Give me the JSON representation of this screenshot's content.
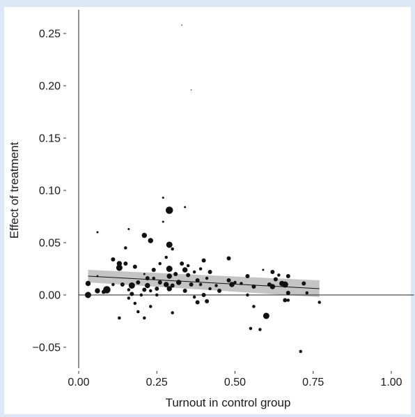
{
  "chart_data": {
    "type": "scatter",
    "title": "",
    "xlabel": "Turnout in control group",
    "ylabel": "Effect of treatment",
    "xlim": [
      -0.02,
      1.05
    ],
    "ylim": [
      -0.075,
      0.275
    ],
    "xticks": [
      0.0,
      0.25,
      0.5,
      0.75,
      1.0
    ],
    "xtick_labels": [
      "0.00",
      "0.25",
      "0.50",
      "0.75",
      "1.00"
    ],
    "yticks": [
      -0.05,
      0.0,
      0.05,
      0.1,
      0.15,
      0.2,
      0.25
    ],
    "ytick_labels": [
      "−0.05",
      "0.00",
      "0.05",
      "0.10",
      "0.15",
      "0.20",
      "0.25"
    ],
    "grid": false,
    "legend": "none",
    "colors": {
      "points": "#111111",
      "band": "#c4c4c4",
      "trend": "#111111",
      "background": "#dde8f6"
    },
    "trend": {
      "x": [
        0.03,
        0.77
      ],
      "y": [
        0.018,
        0.006
      ],
      "ci_lower": [
        0.012,
        -0.002
      ],
      "ci_upper": [
        0.024,
        0.014
      ]
    },
    "points": [
      {
        "x": 0.03,
        "y": 0.0,
        "s": 3
      },
      {
        "x": 0.03,
        "y": 0.011,
        "s": 2.5
      },
      {
        "x": 0.06,
        "y": 0.004,
        "s": 2.5
      },
      {
        "x": 0.06,
        "y": 0.06,
        "s": 1
      },
      {
        "x": 0.06,
        "y": 0.018,
        "s": 1
      },
      {
        "x": 0.09,
        "y": 0.005,
        "s": 3.5
      },
      {
        "x": 0.08,
        "y": 0.003,
        "s": 2
      },
      {
        "x": 0.11,
        "y": 0.01,
        "s": 1.5
      },
      {
        "x": 0.11,
        "y": 0.034,
        "s": 2
      },
      {
        "x": 0.13,
        "y": 0.026,
        "s": 3
      },
      {
        "x": 0.13,
        "y": 0.03,
        "s": 2.5
      },
      {
        "x": 0.14,
        "y": 0.01,
        "s": 2
      },
      {
        "x": 0.13,
        "y": -0.022,
        "s": 1.5
      },
      {
        "x": 0.15,
        "y": 0.045,
        "s": 1.5
      },
      {
        "x": 0.16,
        "y": 0.063,
        "s": 1
      },
      {
        "x": 0.15,
        "y": 0.03,
        "s": 2
      },
      {
        "x": 0.16,
        "y": 0.005,
        "s": 1.5
      },
      {
        "x": 0.17,
        "y": 0.001,
        "s": 2
      },
      {
        "x": 0.17,
        "y": 0.009,
        "s": 3
      },
      {
        "x": 0.16,
        "y": -0.003,
        "s": 1.5
      },
      {
        "x": 0.18,
        "y": 0.027,
        "s": 2
      },
      {
        "x": 0.18,
        "y": -0.008,
        "s": 1.5
      },
      {
        "x": 0.19,
        "y": 0.012,
        "s": 2
      },
      {
        "x": 0.2,
        "y": 0.0,
        "s": 1.5
      },
      {
        "x": 0.19,
        "y": -0.016,
        "s": 1.5
      },
      {
        "x": 0.21,
        "y": 0.057,
        "s": 2.5
      },
      {
        "x": 0.21,
        "y": 0.02,
        "s": 1
      },
      {
        "x": 0.21,
        "y": 0.005,
        "s": 2
      },
      {
        "x": 0.21,
        "y": -0.022,
        "s": 1.5
      },
      {
        "x": 0.22,
        "y": 0.016,
        "s": 2
      },
      {
        "x": 0.22,
        "y": 0.009,
        "s": 2.5
      },
      {
        "x": 0.23,
        "y": 0.052,
        "s": 2.5
      },
      {
        "x": 0.23,
        "y": 0.004,
        "s": 1.5
      },
      {
        "x": 0.23,
        "y": -0.011,
        "s": 1.5
      },
      {
        "x": 0.24,
        "y": 0.024,
        "s": 2
      },
      {
        "x": 0.24,
        "y": 0.016,
        "s": 1.5
      },
      {
        "x": 0.25,
        "y": 0.006,
        "s": 2
      },
      {
        "x": 0.25,
        "y": 0.0,
        "s": 1.5
      },
      {
        "x": 0.26,
        "y": 0.012,
        "s": 2
      },
      {
        "x": 0.26,
        "y": 0.03,
        "s": 1.5
      },
      {
        "x": 0.27,
        "y": 0.093,
        "s": 1
      },
      {
        "x": 0.27,
        "y": 0.07,
        "s": 1
      },
      {
        "x": 0.28,
        "y": 0.036,
        "s": 1.5
      },
      {
        "x": 0.28,
        "y": 0.01,
        "s": 2.5
      },
      {
        "x": 0.29,
        "y": 0.081,
        "s": 3.5
      },
      {
        "x": 0.29,
        "y": 0.048,
        "s": 3
      },
      {
        "x": 0.29,
        "y": 0.025,
        "s": 3
      },
      {
        "x": 0.29,
        "y": 0.018,
        "s": 2.5
      },
      {
        "x": 0.29,
        "y": 0.006,
        "s": 2.5
      },
      {
        "x": 0.3,
        "y": 0.044,
        "s": 1.5
      },
      {
        "x": 0.3,
        "y": 0.009,
        "s": 2
      },
      {
        "x": 0.3,
        "y": -0.017,
        "s": 1.5
      },
      {
        "x": 0.31,
        "y": 0.02,
        "s": 2
      },
      {
        "x": 0.32,
        "y": 0.012,
        "s": 2.5
      },
      {
        "x": 0.33,
        "y": 0.03,
        "s": 2
      },
      {
        "x": 0.33,
        "y": 0.258,
        "s": 0.5
      },
      {
        "x": 0.34,
        "y": 0.084,
        "s": 1
      },
      {
        "x": 0.34,
        "y": 0.024,
        "s": 2.5
      },
      {
        "x": 0.34,
        "y": 0.004,
        "s": 2
      },
      {
        "x": 0.35,
        "y": 0.019,
        "s": 2
      },
      {
        "x": 0.35,
        "y": 0.028,
        "s": 1.5
      },
      {
        "x": 0.36,
        "y": 0.196,
        "s": 0.5
      },
      {
        "x": 0.36,
        "y": 0.01,
        "s": 2
      },
      {
        "x": 0.37,
        "y": 0.022,
        "s": 1.5
      },
      {
        "x": 0.37,
        "y": -0.002,
        "s": 1.5
      },
      {
        "x": 0.38,
        "y": 0.014,
        "s": 2
      },
      {
        "x": 0.38,
        "y": -0.007,
        "s": 2
      },
      {
        "x": 0.39,
        "y": 0.01,
        "s": 1.5
      },
      {
        "x": 0.39,
        "y": 0.025,
        "s": 1.5
      },
      {
        "x": 0.4,
        "y": 0.033,
        "s": 2
      },
      {
        "x": 0.4,
        "y": 0.0,
        "s": 2
      },
      {
        "x": 0.41,
        "y": 0.016,
        "s": 1.5
      },
      {
        "x": 0.41,
        "y": -0.006,
        "s": 2
      },
      {
        "x": 0.42,
        "y": 0.006,
        "s": 1.5
      },
      {
        "x": 0.42,
        "y": 0.022,
        "s": 2
      },
      {
        "x": 0.44,
        "y": 0.009,
        "s": 1.5
      },
      {
        "x": 0.45,
        "y": 0.004,
        "s": 2
      },
      {
        "x": 0.48,
        "y": 0.035,
        "s": 2
      },
      {
        "x": 0.48,
        "y": 0.014,
        "s": 2
      },
      {
        "x": 0.49,
        "y": 0.01,
        "s": 2.5
      },
      {
        "x": 0.5,
        "y": 0.012,
        "s": 1.5
      },
      {
        "x": 0.52,
        "y": 0.011,
        "s": 1.5
      },
      {
        "x": 0.54,
        "y": 0.018,
        "s": 2
      },
      {
        "x": 0.54,
        "y": 0.0,
        "s": 1.5
      },
      {
        "x": 0.55,
        "y": -0.032,
        "s": 1.5
      },
      {
        "x": 0.56,
        "y": 0.008,
        "s": 2
      },
      {
        "x": 0.56,
        "y": -0.011,
        "s": 1.5
      },
      {
        "x": 0.58,
        "y": -0.033,
        "s": 1.5
      },
      {
        "x": 0.59,
        "y": 0.024,
        "s": 1
      },
      {
        "x": 0.6,
        "y": -0.02,
        "s": 3
      },
      {
        "x": 0.61,
        "y": 0.01,
        "s": 2
      },
      {
        "x": 0.62,
        "y": 0.022,
        "s": 2
      },
      {
        "x": 0.62,
        "y": 0.008,
        "s": 2.5
      },
      {
        "x": 0.63,
        "y": 0.015,
        "s": 2
      },
      {
        "x": 0.64,
        "y": 0.019,
        "s": 1.5
      },
      {
        "x": 0.65,
        "y": 0.011,
        "s": 2.5
      },
      {
        "x": 0.66,
        "y": 0.01,
        "s": 3
      },
      {
        "x": 0.66,
        "y": -0.005,
        "s": 2
      },
      {
        "x": 0.67,
        "y": 0.018,
        "s": 2
      },
      {
        "x": 0.67,
        "y": 0.002,
        "s": 2
      },
      {
        "x": 0.67,
        "y": -0.005,
        "s": 1.5
      },
      {
        "x": 0.71,
        "y": -0.054,
        "s": 1.5
      },
      {
        "x": 0.72,
        "y": 0.011,
        "s": 2
      },
      {
        "x": 0.73,
        "y": 0.002,
        "s": 1.5
      },
      {
        "x": 0.77,
        "y": -0.007,
        "s": 1.5
      }
    ]
  }
}
